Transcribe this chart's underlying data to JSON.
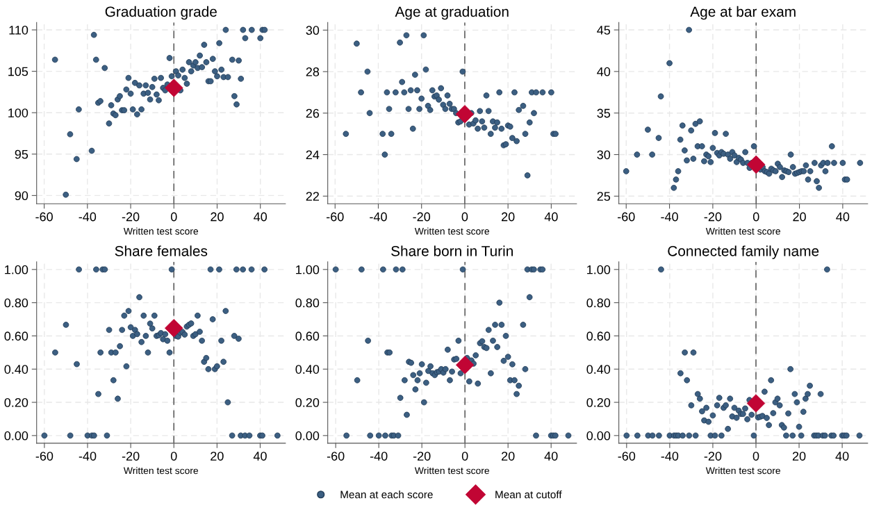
{
  "chart_data": [
    {
      "type": "scatter",
      "title": "Graduation grade",
      "xlabel": "Written test score",
      "xlim": [
        -63.5,
        51.6
      ],
      "ylim": [
        89,
        110.9
      ],
      "xticks": [
        -60,
        -40,
        -20,
        0,
        20,
        40
      ],
      "yticks": [
        90,
        95,
        100,
        105,
        110
      ],
      "grid": true,
      "legend": "bottom",
      "ref_lines": [
        {
          "axis": "x",
          "value": 0,
          "line_style": "dashed",
          "color": "#555555"
        }
      ],
      "series": [
        {
          "name": "Mean at each score",
          "color": "#3c5f82",
          "marker": "circle",
          "x": [
            -55,
            -50,
            -48,
            -45,
            -44,
            -38,
            -37,
            -36,
            -35,
            -34,
            -32,
            -30,
            -29,
            -28,
            -27,
            -26,
            -25,
            -24,
            -23,
            -22,
            -21,
            -20,
            -19,
            -18,
            -17,
            -16,
            -15,
            -14,
            -13,
            -12,
            -11,
            -10,
            -9,
            -8,
            -7,
            -6,
            -5,
            -4,
            -3,
            -2,
            -1,
            1,
            2,
            3,
            4,
            5,
            6,
            7,
            8,
            9,
            10,
            11,
            12,
            13,
            14,
            15,
            16,
            17,
            18,
            19,
            20,
            21,
            22,
            23,
            24,
            25,
            27,
            28,
            29,
            30,
            31,
            32,
            33,
            36,
            40,
            41,
            42
          ],
          "values": [
            106.4,
            90.1,
            97.4,
            94.4,
            100.4,
            95.4,
            109.4,
            106.4,
            101.2,
            101.4,
            105.4,
            98.7,
            100.9,
            99.9,
            99.7,
            101.6,
            102,
            100.3,
            100.3,
            102.8,
            104.2,
            102.3,
            100.4,
            103.6,
            99.8,
            103.3,
            100.4,
            102.3,
            103.3,
            102.4,
            101.6,
            103.1,
            104.1,
            102.2,
            101.5,
            104.2,
            103,
            102.7,
            103.4,
            106.6,
            104.4,
            105,
            104.5,
            102.7,
            105.2,
            104.2,
            103.5,
            106.1,
            105,
            105.7,
            106.1,
            105.4,
            106.9,
            105.5,
            108.2,
            106.1,
            103.8,
            103.8,
            106.5,
            105,
            104.4,
            108.4,
            105.2,
            104.3,
            110,
            104.3,
            106.4,
            102,
            101,
            106.3,
            104.1,
            110,
            109,
            110,
            109,
            110,
            110
          ]
        },
        {
          "name": "Mean at cutoff",
          "color": "#c10534",
          "marker": "diamond",
          "x": [
            0
          ],
          "values": [
            103
          ]
        }
      ]
    },
    {
      "type": "scatter",
      "title": "Age at graduation",
      "xlabel": "Written test score",
      "xlim": [
        -63.4,
        51.7
      ],
      "ylim": [
        21.63,
        30.37
      ],
      "xticks": [
        -60,
        -40,
        -20,
        0,
        20,
        40
      ],
      "yticks": [
        22,
        24,
        26,
        28,
        30
      ],
      "grid": true,
      "legend": "bottom",
      "ref_lines": [
        {
          "axis": "x",
          "value": 0,
          "line_style": "dashed",
          "color": "#555555"
        }
      ],
      "series": [
        {
          "name": "Mean at each score",
          "color": "#3c5f82",
          "marker": "circle",
          "x": [
            -55,
            -50,
            -48,
            -45,
            -44,
            -38,
            -37,
            -36,
            -35,
            -34,
            -32,
            -30,
            -29,
            -28,
            -27,
            -26,
            -25,
            -24,
            -23,
            -22,
            -21,
            -20,
            -19,
            -18,
            -17,
            -16,
            -15,
            -14,
            -13,
            -12,
            -11,
            -10,
            -9,
            -8,
            -7,
            -6,
            -5,
            -4,
            -3,
            -2,
            -1,
            2,
            3,
            4,
            5,
            6,
            7,
            8,
            9,
            10,
            11,
            12,
            13,
            14,
            15,
            16,
            17,
            18,
            19,
            20,
            21,
            22,
            23,
            24,
            25,
            27,
            28,
            29,
            30,
            31,
            32,
            33,
            36,
            40,
            41,
            42
          ],
          "values": [
            25,
            29.35,
            27,
            28,
            26,
            25,
            24,
            27,
            26.2,
            25,
            27,
            29.4,
            27.5,
            27,
            29.75,
            26.2,
            27.1,
            25.25,
            27.85,
            27.1,
            26.2,
            26.7,
            29.75,
            28.1,
            26.35,
            26.15,
            27.1,
            26.8,
            26.85,
            26.65,
            27.2,
            26.4,
            26.2,
            26.85,
            26.45,
            26.2,
            26.2,
            26,
            25.55,
            25.6,
            28,
            25.45,
            26,
            25.5,
            25.65,
            25.25,
            26.1,
            25.6,
            25.3,
            26.85,
            26.1,
            25,
            25.6,
            25.3,
            25.55,
            27,
            25.25,
            24.45,
            24.5,
            25.4,
            25.35,
            24.8,
            27,
            24.65,
            26.15,
            26.35,
            25,
            23,
            25.55,
            27,
            26,
            27,
            27,
            27,
            25,
            25
          ]
        },
        {
          "name": "Mean at cutoff",
          "color": "#c10534",
          "marker": "diamond",
          "x": [
            0
          ],
          "values": [
            25.95
          ]
        }
      ]
    },
    {
      "type": "scatter",
      "title": "Age at bar exam",
      "xlabel": "Written test score",
      "xlim": [
        -63.4,
        51.5
      ],
      "ylim": [
        24.08,
        45.9
      ],
      "xticks": [
        -60,
        -40,
        -20,
        0,
        20,
        40
      ],
      "yticks": [
        25,
        30,
        35,
        40,
        45
      ],
      "grid": true,
      "legend": "bottom",
      "ref_lines": [
        {
          "axis": "x",
          "value": 0,
          "line_style": "dashed",
          "color": "#555555"
        }
      ],
      "series": [
        {
          "name": "Mean at each score",
          "color": "#3c5f82",
          "marker": "circle",
          "x": [
            -60,
            -55,
            -50,
            -48,
            -45,
            -44,
            -40,
            -38,
            -37,
            -36,
            -35,
            -34,
            -33,
            -32,
            -31,
            -30,
            -29,
            -28,
            -27,
            -26,
            -25,
            -24,
            -23,
            -22,
            -21,
            -20,
            -19,
            -18,
            -17,
            -16,
            -15,
            -14,
            -13,
            -12,
            -11,
            -10,
            -9,
            -8,
            -7,
            -6,
            -5,
            -4,
            -3,
            -2,
            -1,
            2,
            3,
            4,
            5,
            6,
            7,
            8,
            9,
            10,
            11,
            12,
            13,
            14,
            15,
            16,
            17,
            18,
            19,
            20,
            21,
            22,
            23,
            24,
            25,
            27,
            28,
            29,
            30,
            31,
            32,
            33,
            35,
            36,
            40,
            41,
            42,
            48
          ],
          "values": [
            28,
            30,
            33,
            30,
            32,
            37,
            41,
            26,
            27,
            28,
            31.8,
            33.5,
            30.5,
            29.3,
            45,
            32.9,
            29.5,
            33.7,
            31,
            34,
            31,
            29.2,
            30,
            29.8,
            29.1,
            30.8,
            32.6,
            30.2,
            29.9,
            30.3,
            30.1,
            32.5,
            30,
            29.5,
            30.3,
            29.9,
            29.1,
            29.6,
            29.4,
            29,
            30.3,
            29,
            28.4,
            29,
            31,
            28.2,
            28.5,
            28,
            27.9,
            27.7,
            28.3,
            28.1,
            28,
            28.9,
            28.5,
            27.3,
            28.1,
            28,
            27.9,
            30,
            28.5,
            27.7,
            27.8,
            27.9,
            28,
            28,
            28.7,
            27,
            28,
            29,
            26.8,
            26,
            28.7,
            29,
            28,
            29,
            31,
            29,
            29,
            27,
            27,
            29
          ]
        },
        {
          "name": "Mean at cutoff",
          "color": "#c10534",
          "marker": "diamond",
          "x": [
            0
          ],
          "values": [
            28.8
          ]
        }
      ]
    },
    {
      "type": "scatter",
      "title": "Share females",
      "xlabel": "Written test score",
      "xlim": [
        -63.6,
        51.7
      ],
      "ylim": [
        -0.046,
        1.046
      ],
      "xticks": [
        -60,
        -40,
        -20,
        0,
        20,
        40
      ],
      "yticks": [
        {
          "value": 0,
          "label": "0.00"
        },
        {
          "value": 0.2,
          "label": "0.20"
        },
        {
          "value": 0.4,
          "label": "0.40"
        },
        {
          "value": 0.6,
          "label": "0.60"
        },
        {
          "value": 0.8,
          "label": "0.80"
        },
        {
          "value": 1,
          "label": "1.00"
        }
      ],
      "grid": true,
      "legend": "bottom",
      "ref_lines": [
        {
          "axis": "x",
          "value": 0,
          "line_style": "dashed",
          "color": "#555555"
        }
      ],
      "series": [
        {
          "name": "Mean at each score",
          "color": "#3c5f82",
          "marker": "circle",
          "x": [
            -60,
            -55,
            -50,
            -48,
            -45,
            -44,
            -40,
            -38,
            -37,
            -36,
            -35,
            -34,
            -33,
            -32,
            -31,
            -30,
            -29,
            -28,
            -27,
            -26,
            -25,
            -24,
            -23,
            -22,
            -21,
            -20,
            -19,
            -18,
            -17,
            -16,
            -15,
            -14,
            -13,
            -12,
            -11,
            -10,
            -9,
            -8,
            -7,
            -6,
            -5,
            -4,
            -3,
            -2,
            -1,
            1,
            2,
            3,
            4,
            5,
            6,
            7,
            8,
            9,
            10,
            11,
            12,
            13,
            14,
            15,
            16,
            17,
            18,
            19,
            20,
            21,
            22,
            23,
            24,
            25,
            27,
            28,
            29,
            30,
            31,
            32,
            33,
            35,
            36,
            40,
            41,
            42,
            48
          ],
          "values": [
            0,
            0.5,
            0.667,
            0,
            0.43,
            1,
            0,
            0,
            0,
            1,
            0.25,
            0.5,
            1,
            1,
            0,
            0.636,
            0.5,
            0.333,
            0.5,
            0.222,
            0.538,
            0.636,
            0.722,
            0.417,
            0.75,
            0.652,
            0.6,
            0.636,
            0.611,
            0.833,
            0.563,
            0.722,
            0.6,
            0.5,
            0.674,
            0.645,
            0.722,
            0.6,
            0.604,
            0.617,
            0.58,
            0.61,
            0.571,
            0.5,
            1,
            0.6,
            0.596,
            0.62,
            0.624,
            0.608,
            0.656,
            0.667,
            0.675,
            0.6,
            0.61,
            0.722,
            0.625,
            0.571,
            0.444,
            0.467,
            0.4,
            1,
            0.7,
            0.4,
            0.417,
            1,
            0.571,
            0.444,
            0.75,
            0.2,
            0,
            0.6,
            1,
            0.583,
            0,
            1,
            0,
            0,
            1,
            0,
            0,
            1,
            0
          ]
        },
        {
          "name": "Mean at cutoff",
          "color": "#c10534",
          "marker": "diamond",
          "x": [
            0
          ],
          "values": [
            0.647
          ]
        }
      ]
    },
    {
      "type": "scatter",
      "title": "Share born in Turin",
      "xlabel": "Written test score",
      "xlim": [
        -63.7,
        51.8
      ],
      "ylim": [
        -0.046,
        1.046
      ],
      "xticks": [
        -60,
        -40,
        -20,
        0,
        20,
        40
      ],
      "yticks": [
        {
          "value": 0,
          "label": "0.00"
        },
        {
          "value": 0.2,
          "label": "0.20"
        },
        {
          "value": 0.4,
          "label": "0.40"
        },
        {
          "value": 0.6,
          "label": "0.60"
        },
        {
          "value": 0.8,
          "label": "0.80"
        },
        {
          "value": 1,
          "label": "1.00"
        }
      ],
      "grid": true,
      "legend": "bottom",
      "ref_lines": [
        {
          "axis": "x",
          "value": 0,
          "line_style": "dashed",
          "color": "#555555"
        }
      ],
      "series": [
        {
          "name": "Mean at each score",
          "color": "#3c5f82",
          "marker": "circle",
          "x": [
            -60,
            -55,
            -50,
            -48,
            -45,
            -44,
            -40,
            -38,
            -37,
            -36,
            -35,
            -34,
            -33,
            -32,
            -31,
            -30,
            -29,
            -28,
            -27,
            -26,
            -25,
            -24,
            -23,
            -22,
            -21,
            -20,
            -19,
            -18,
            -17,
            -16,
            -15,
            -14,
            -13,
            -12,
            -11,
            -10,
            -9,
            -8,
            -7,
            -6,
            -5,
            -4,
            -3,
            -2,
            -1,
            1,
            2,
            3,
            4,
            5,
            6,
            7,
            8,
            9,
            10,
            11,
            12,
            13,
            14,
            15,
            16,
            17,
            18,
            19,
            20,
            21,
            22,
            23,
            24,
            25,
            27,
            28,
            29,
            30,
            31,
            32,
            33,
            35,
            36,
            40,
            41,
            42,
            48
          ],
          "values": [
            1,
            0,
            0.333,
            1,
            0.571,
            0,
            0,
            1,
            0,
            0.5,
            0.5,
            0,
            0,
            1,
            0,
            0.227,
            1,
            0.333,
            0.125,
            0.444,
            0.438,
            0.364,
            0.278,
            0.333,
            0.375,
            0.429,
            0.2,
            0.318,
            0.389,
            0.417,
            0.375,
            0.364,
            0.381,
            0.385,
            0.4,
            0.379,
            0.4,
            0.517,
            0.333,
            0.385,
            0.458,
            0.462,
            0.571,
            0.375,
            1,
            0.467,
            0.326,
            0.452,
            0.433,
            0.483,
            0.313,
            0.556,
            0.568,
            0.533,
            0.527,
            0.636,
            0.375,
            0.571,
            0.667,
            0.533,
            0.8,
            0.667,
            0.45,
            0.6,
            0.474,
            0.333,
            0.429,
            0.333,
            0.25,
            0.3,
            0.667,
            0.4,
            1,
            0.833,
            1,
            1,
            0,
            1,
            1,
            0,
            0,
            0,
            0
          ]
        },
        {
          "name": "Mean at cutoff",
          "color": "#c10534",
          "marker": "diamond",
          "x": [
            0
          ],
          "values": [
            0.425
          ]
        }
      ]
    },
    {
      "type": "scatter",
      "title": "Connected family name",
      "xlabel": "Written test score",
      "xlim": [
        -63.6,
        51.8
      ],
      "ylim": [
        -0.046,
        1.046
      ],
      "xticks": [
        -60,
        -40,
        -20,
        0,
        20,
        40
      ],
      "yticks": [
        {
          "value": 0,
          "label": "0.00"
        },
        {
          "value": 0.2,
          "label": "0.20"
        },
        {
          "value": 0.4,
          "label": "0.40"
        },
        {
          "value": 0.6,
          "label": "0.60"
        },
        {
          "value": 0.8,
          "label": "0.80"
        },
        {
          "value": 1,
          "label": "1.00"
        }
      ],
      "grid": true,
      "legend": "bottom",
      "ref_lines": [
        {
          "axis": "x",
          "value": 0,
          "line_style": "dashed",
          "color": "#555555"
        }
      ],
      "series": [
        {
          "name": "Mean at each score",
          "color": "#3c5f82",
          "marker": "circle",
          "x": [
            -60,
            -55,
            -50,
            -48,
            -45,
            -44,
            -40,
            -38,
            -37,
            -36,
            -35,
            -34,
            -33,
            -32,
            -31,
            -30,
            -29,
            -28,
            -27,
            -26,
            -25,
            -24,
            -23,
            -22,
            -21,
            -20,
            -19,
            -18,
            -17,
            -16,
            -15,
            -14,
            -13,
            -12,
            -11,
            -10,
            -9,
            -8,
            -7,
            -6,
            -5,
            -4,
            -3,
            -2,
            -1,
            1,
            2,
            3,
            4,
            5,
            6,
            7,
            8,
            9,
            10,
            11,
            12,
            13,
            14,
            15,
            16,
            17,
            18,
            19,
            20,
            21,
            22,
            23,
            24,
            25,
            27,
            28,
            29,
            30,
            31,
            32,
            33,
            35,
            36,
            40,
            41,
            42,
            48
          ],
          "values": [
            0,
            0,
            0,
            0,
            0,
            1,
            0,
            0,
            0,
            0,
            0.375,
            0,
            0.5,
            0.333,
            0,
            0.182,
            0.5,
            0,
            0.25,
            0.222,
            0.146,
            0.091,
            0.167,
            0.083,
            0,
            0.121,
            0,
            0.182,
            0.227,
            0,
            0.167,
            0.182,
            0.04,
            0.222,
            0.115,
            0.167,
            0.107,
            0.15,
            0.13,
            0.13,
            0.163,
            0.098,
            0.214,
            0.125,
            0,
            0.109,
            0.113,
            0.118,
            0.264,
            0.106,
            0.063,
            0.333,
            0.135,
            0.2,
            0.222,
            0.182,
            0.063,
            0.048,
            0,
            0.133,
            0.4,
            0,
            0.25,
            0.2,
            0.053,
            0,
            0.143,
            0.222,
            0.25,
            0.3,
            0,
            0,
            0,
            0.25,
            0,
            0,
            1,
            0,
            0,
            0,
            0,
            0,
            0
          ]
        },
        {
          "name": "Mean at cutoff",
          "color": "#c10534",
          "marker": "diamond",
          "x": [
            0
          ],
          "values": [
            0.194
          ]
        }
      ]
    }
  ]
}
